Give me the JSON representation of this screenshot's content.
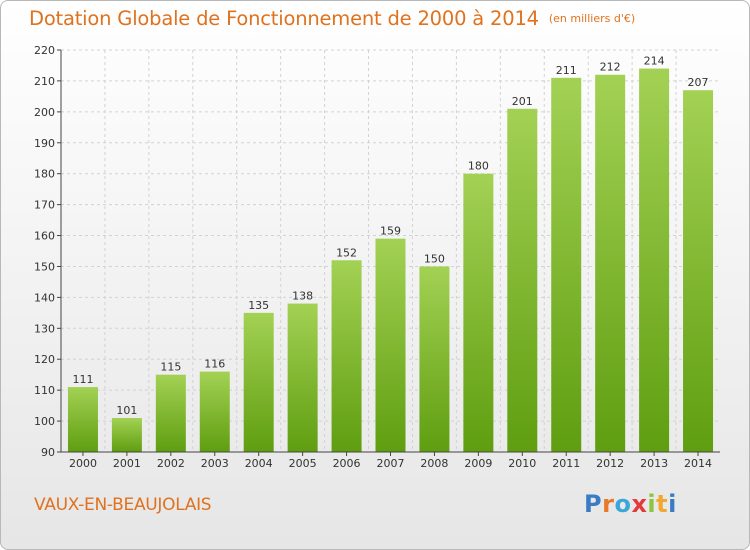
{
  "header": {
    "title": "Dotation Globale de Fonctionnement de 2000 à 2014",
    "unit": "(en milliers d'€)"
  },
  "footer": {
    "commune": "VAUX-EN-BEAUJOLAIS",
    "logo_letters": [
      {
        "char": "P",
        "color": "#3a7cc4"
      },
      {
        "char": "r",
        "color": "#e9792a"
      },
      {
        "char": "o",
        "color": "#3ba7d8"
      },
      {
        "char": "x",
        "color": "#e23b3b"
      },
      {
        "char": "i",
        "color": "#8cc63f"
      },
      {
        "char": "t",
        "color": "#f0a92e"
      },
      {
        "char": "i",
        "color": "#3a7cc4"
      }
    ]
  },
  "chart_data": {
    "type": "bar",
    "categories": [
      "2000",
      "2001",
      "2002",
      "2003",
      "2004",
      "2005",
      "2006",
      "2007",
      "2008",
      "2009",
      "2010",
      "2011",
      "2012",
      "2013",
      "2014"
    ],
    "values": [
      111,
      101,
      115,
      116,
      135,
      138,
      152,
      159,
      150,
      180,
      201,
      211,
      212,
      214,
      207
    ],
    "ylim": [
      90,
      220
    ],
    "yticks": [
      90,
      100,
      110,
      120,
      130,
      140,
      150,
      160,
      170,
      180,
      190,
      200,
      210,
      220
    ],
    "grid": true,
    "colors": {
      "bar_top": "#a3d154",
      "bar_bottom": "#5f9e10",
      "text": "#333333",
      "axis": "#444444",
      "grid": "#d2d2d2"
    }
  }
}
